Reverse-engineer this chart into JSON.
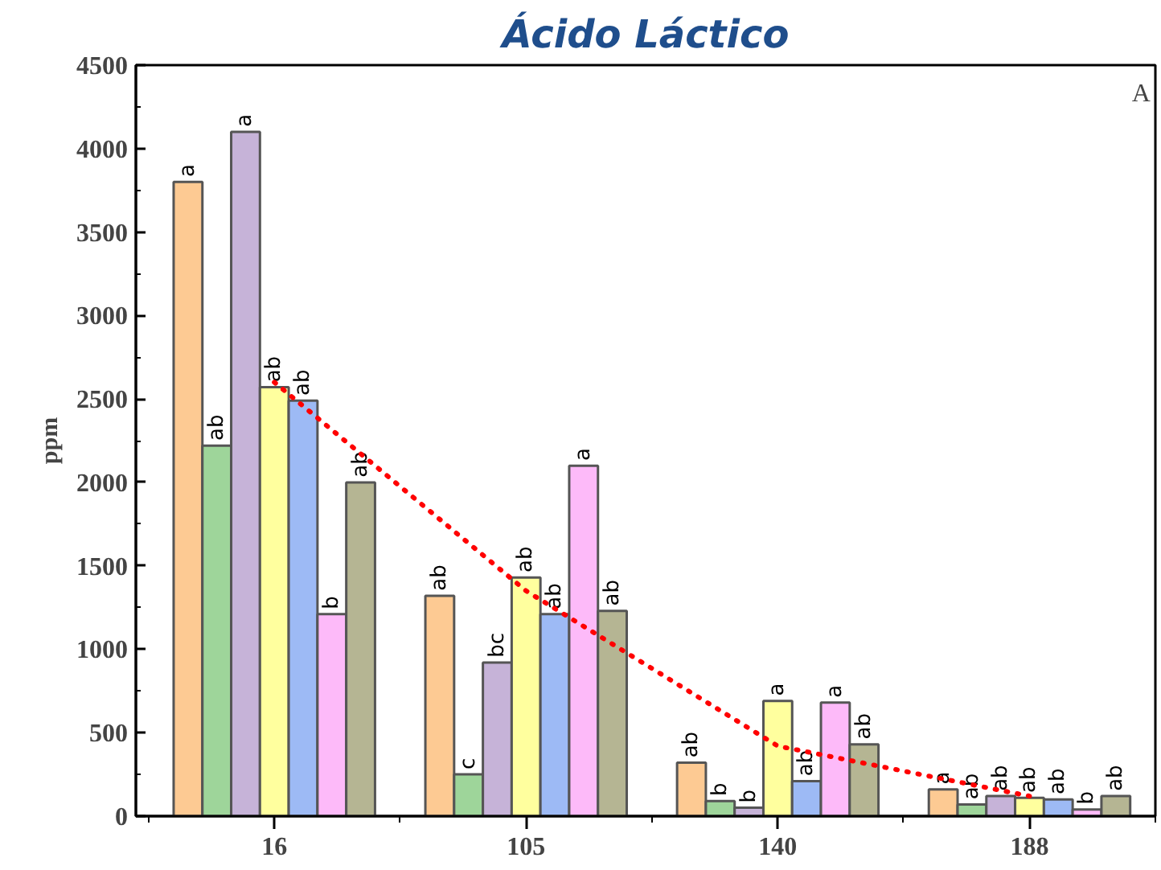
{
  "chart_data": {
    "type": "bar",
    "title": "Ácido Láctico",
    "ylabel": "ppm",
    "categories": [
      "16",
      "105",
      "140",
      "188"
    ],
    "ylim": [
      0,
      4500
    ],
    "yticks": [
      0,
      500,
      1000,
      1500,
      2000,
      2500,
      3000,
      3500,
      4000,
      4500
    ],
    "grid": false,
    "annotations": [
      "A"
    ],
    "series": [
      {
        "color": "#fdca93",
        "values": [
          3800,
          1320,
          320,
          160
        ],
        "value_labels": [
          "a",
          "ab",
          "ab",
          "a"
        ]
      },
      {
        "color": "#9ed59a",
        "values": [
          2220,
          250,
          90,
          70
        ],
        "value_labels": [
          "ab",
          "c",
          "b",
          "ab"
        ]
      },
      {
        "color": "#c6b3d8",
        "values": [
          4100,
          920,
          50,
          120
        ],
        "value_labels": [
          "a",
          "bc",
          "b",
          "ab"
        ]
      },
      {
        "color": "#ffff9e",
        "values": [
          2570,
          1430,
          690,
          110
        ],
        "value_labels": [
          "ab",
          "ab",
          "a",
          "ab"
        ]
      },
      {
        "color": "#9dbaf5",
        "values": [
          2490,
          1210,
          210,
          100
        ],
        "value_labels": [
          "ab",
          "ab",
          "ab",
          "ab"
        ]
      },
      {
        "color": "#fdbaf9",
        "values": [
          1210,
          2100,
          680,
          40
        ],
        "value_labels": [
          "b",
          "a",
          "a",
          "b"
        ]
      },
      {
        "color": "#b5b593",
        "values": [
          2000,
          1230,
          430,
          120
        ],
        "value_labels": [
          "ab",
          "ab",
          "ab",
          "ab"
        ]
      },
      {
        "type": "line",
        "color": "#ff0000",
        "line_style": "dotted",
        "marker": "none",
        "values": [
          2600,
          1350,
          420,
          120
        ]
      }
    ]
  }
}
